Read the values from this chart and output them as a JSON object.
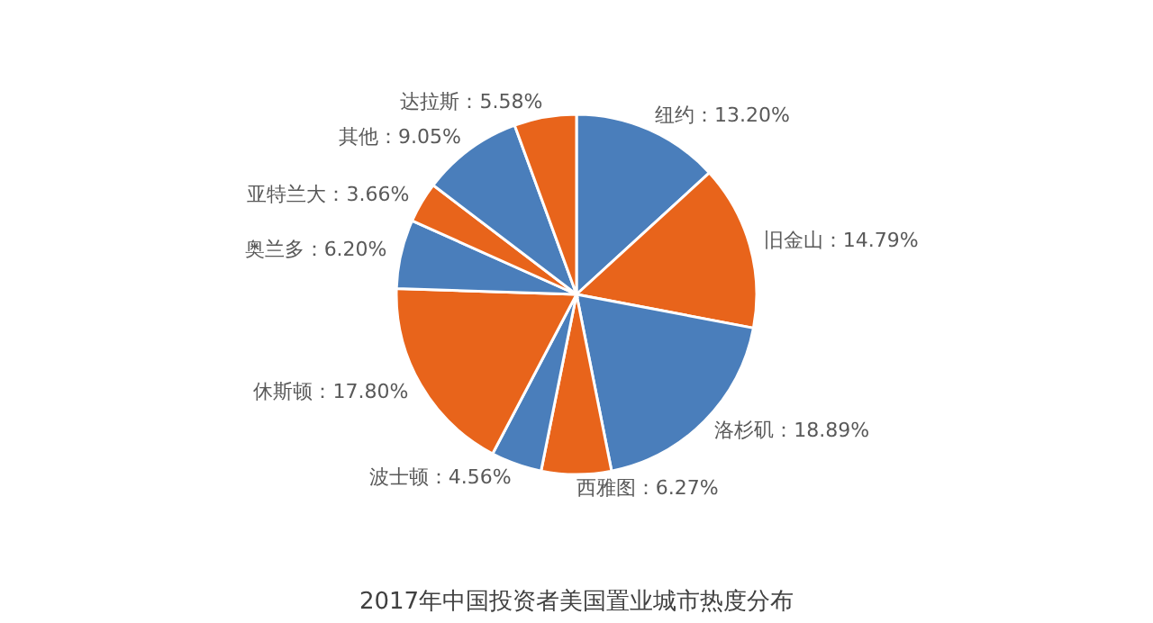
{
  "chart_data": {
    "type": "pie",
    "title": "2017年中国投资者美国置业城市热度分布",
    "categories": [
      "纽约",
      "旧金山",
      "洛杉矶",
      "西雅图",
      "波士顿",
      "休斯顿",
      "奥兰多",
      "亚特兰大",
      "其他",
      "达拉斯"
    ],
    "values": [
      13.2,
      14.79,
      18.89,
      6.27,
      4.56,
      17.8,
      6.2,
      3.66,
      9.05,
      5.58
    ],
    "value_labels": [
      "13.20%",
      "14.79%",
      "18.89%",
      "6.27%",
      "4.56%",
      "17.80%",
      "6.20%",
      "3.66%",
      "9.05%",
      "5.58%"
    ],
    "colors": [
      "#4a7ebb",
      "#e8641b",
      "#4a7ebb",
      "#e8641b",
      "#4a7ebb",
      "#e8641b",
      "#4a7ebb",
      "#e8641b",
      "#4a7ebb",
      "#e8641b"
    ],
    "legend": false
  }
}
